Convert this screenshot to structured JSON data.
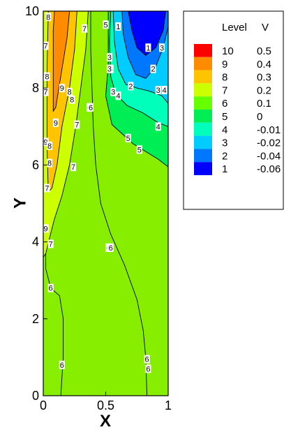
{
  "chart_data": {
    "type": "contour",
    "xlabel": "X",
    "ylabel": "Y",
    "xlim": [
      0,
      1
    ],
    "ylim": [
      0,
      10
    ],
    "x_ticks": [
      0,
      0.5,
      1
    ],
    "y_ticks": [
      0,
      2,
      4,
      6,
      8,
      10
    ],
    "x_tick_labels": [
      "0",
      "0.5",
      "1"
    ],
    "y_tick_labels": [
      "0",
      "2",
      "4",
      "6",
      "8",
      "10"
    ],
    "legend": {
      "header_level": "Level",
      "header_value": "V",
      "placement": "right",
      "levels": [
        {
          "level": "10",
          "value": "0.5",
          "color": "#ff0000"
        },
        {
          "level": "9",
          "value": "0.4",
          "color": "#ff8c00"
        },
        {
          "level": "8",
          "value": "0.3",
          "color": "#ffc400"
        },
        {
          "level": "7",
          "value": "0.2",
          "color": "#ccff00"
        },
        {
          "level": "6",
          "value": "0.1",
          "color": "#66ff00"
        },
        {
          "level": "5",
          "value": "0",
          "color": "#00ee55"
        },
        {
          "level": "4",
          "value": "-0.01",
          "color": "#00ffbb"
        },
        {
          "level": "3",
          "value": "-0.02",
          "color": "#00ccff"
        },
        {
          "level": "2",
          "value": "-0.04",
          "color": "#0077ff"
        },
        {
          "level": "1",
          "value": "-0.06",
          "color": "#0000ff"
        }
      ]
    },
    "background_color": "#88ee00",
    "regions": [
      {
        "level": "5",
        "color": "#00ee55",
        "points": [
          [
            0.52,
            10
          ],
          [
            1,
            10
          ],
          [
            1,
            5.95
          ],
          [
            0.92,
            6.15
          ],
          [
            0.72,
            6.55
          ],
          [
            0.55,
            7.05
          ],
          [
            0.5,
            7.8
          ],
          [
            0.52,
            8.6
          ]
        ]
      },
      {
        "level": "4",
        "color": "#00ffbb",
        "points": [
          [
            0.54,
            10
          ],
          [
            1,
            10
          ],
          [
            1,
            7.0
          ],
          [
            0.92,
            7.1
          ],
          [
            0.8,
            7.35
          ],
          [
            0.67,
            7.55
          ],
          [
            0.58,
            7.85
          ],
          [
            0.54,
            8.3
          ],
          [
            0.53,
            9.2
          ]
        ]
      },
      {
        "level": "3",
        "color": "#00ccff",
        "points": [
          [
            0.56,
            10
          ],
          [
            1,
            10
          ],
          [
            1,
            7.6
          ],
          [
            0.95,
            7.8
          ],
          [
            0.85,
            7.92
          ],
          [
            0.75,
            8.0
          ],
          [
            0.66,
            8.1
          ],
          [
            0.6,
            8.5
          ],
          [
            0.57,
            9.2
          ]
        ]
      },
      {
        "level": "2",
        "color": "#0077ff",
        "points": [
          [
            0.63,
            10
          ],
          [
            1,
            10
          ],
          [
            1,
            9.6
          ],
          [
            0.96,
            9.05
          ],
          [
            0.9,
            8.55
          ],
          [
            0.82,
            8.25
          ],
          [
            0.74,
            8.35
          ],
          [
            0.68,
            8.8
          ],
          [
            0.64,
            9.4
          ]
        ]
      },
      {
        "level": "1",
        "color": "#0000ff",
        "points": [
          [
            0.68,
            10
          ],
          [
            0.98,
            10
          ],
          [
            0.96,
            9.5
          ],
          [
            0.9,
            9.05
          ],
          [
            0.82,
            8.85
          ],
          [
            0.75,
            9.05
          ],
          [
            0.71,
            9.5
          ]
        ]
      },
      {
        "level": "7",
        "color": "#ccff00",
        "points": [
          [
            0,
            10
          ],
          [
            0.36,
            10
          ],
          [
            0.34,
            9.0
          ],
          [
            0.3,
            8.0
          ],
          [
            0.26,
            7.0
          ],
          [
            0.21,
            6.0
          ],
          [
            0.15,
            5.2
          ],
          [
            0.09,
            4.6
          ],
          [
            0.05,
            4.1
          ],
          [
            0.02,
            3.7
          ],
          [
            0,
            3.6
          ]
        ]
      },
      {
        "level": "8",
        "color": "#ffc400",
        "points": [
          [
            0.04,
            10
          ],
          [
            0.27,
            10
          ],
          [
            0.25,
            9.0
          ],
          [
            0.21,
            8.0
          ],
          [
            0.15,
            7.0
          ],
          [
            0.11,
            6.0
          ],
          [
            0.07,
            5.4
          ],
          [
            0.04,
            5.3
          ],
          [
            0.03,
            6.5
          ],
          [
            0.03,
            8.5
          ]
        ]
      },
      {
        "level": "9",
        "color": "#ff8c00",
        "points": [
          [
            0.09,
            10
          ],
          [
            0.21,
            10
          ],
          [
            0.19,
            9.3
          ],
          [
            0.15,
            8.5
          ],
          [
            0.1,
            7.5
          ],
          [
            0.08,
            7.4
          ],
          [
            0.08,
            8.5
          ],
          [
            0.08,
            9.5
          ]
        ]
      }
    ],
    "lines": [
      {
        "points": [
          [
            0.04,
            10
          ],
          [
            0.27,
            10
          ],
          [
            0.25,
            9.0
          ],
          [
            0.21,
            8.0
          ],
          [
            0.15,
            7.0
          ],
          [
            0.11,
            6.0
          ],
          [
            0.07,
            5.4
          ],
          [
            0.04,
            5.3
          ],
          [
            0.03,
            6.5
          ],
          [
            0.03,
            8.5
          ],
          [
            0.04,
            10
          ]
        ]
      },
      {
        "points": [
          [
            0.09,
            10
          ],
          [
            0.21,
            10
          ],
          [
            0.19,
            9.3
          ],
          [
            0.15,
            8.5
          ],
          [
            0.1,
            7.5
          ],
          [
            0.08,
            7.4
          ],
          [
            0.08,
            8.5
          ],
          [
            0.08,
            9.5
          ],
          [
            0.09,
            10
          ]
        ]
      },
      {
        "points": [
          [
            0.36,
            10
          ],
          [
            0.34,
            9.0
          ],
          [
            0.3,
            8.0
          ],
          [
            0.26,
            7.0
          ],
          [
            0.21,
            6.0
          ],
          [
            0.15,
            5.2
          ],
          [
            0.09,
            4.6
          ],
          [
            0.05,
            4.1
          ],
          [
            0.02,
            3.7
          ],
          [
            0,
            3.6
          ]
        ]
      },
      {
        "points": [
          [
            0.02,
            3.7
          ],
          [
            0.02,
            3.3
          ],
          [
            0.06,
            2.8
          ],
          [
            0.13,
            2.6
          ],
          [
            0.16,
            2.0
          ],
          [
            0.16,
            1.0
          ],
          [
            0.14,
            0
          ]
        ]
      },
      {
        "points": [
          [
            0.38,
            10
          ],
          [
            0.38,
            9.0
          ],
          [
            0.39,
            8.0
          ],
          [
            0.4,
            7.0
          ],
          [
            0.42,
            6.0
          ],
          [
            0.46,
            5.0
          ],
          [
            0.54,
            4.2
          ],
          [
            0.65,
            3.4
          ],
          [
            0.75,
            2.5
          ],
          [
            0.8,
            1.7
          ],
          [
            0.82,
            1.0
          ],
          [
            0.83,
            0
          ]
        ]
      },
      {
        "points": [
          [
            0.52,
            10
          ],
          [
            0.52,
            8.6
          ],
          [
            0.5,
            7.8
          ],
          [
            0.55,
            7.05
          ],
          [
            0.72,
            6.55
          ],
          [
            0.92,
            6.15
          ],
          [
            1,
            5.95
          ]
        ]
      },
      {
        "points": [
          [
            0.54,
            10
          ],
          [
            0.53,
            9.2
          ],
          [
            0.54,
            8.3
          ],
          [
            0.58,
            7.85
          ],
          [
            0.67,
            7.55
          ],
          [
            0.8,
            7.35
          ],
          [
            0.92,
            7.1
          ],
          [
            1,
            7.0
          ]
        ]
      },
      {
        "points": [
          [
            0.56,
            10
          ],
          [
            0.57,
            9.2
          ],
          [
            0.6,
            8.5
          ],
          [
            0.66,
            8.1
          ],
          [
            0.75,
            8.0
          ],
          [
            0.85,
            7.92
          ],
          [
            0.95,
            7.8
          ],
          [
            1,
            7.6
          ]
        ]
      },
      {
        "points": [
          [
            0.63,
            10
          ],
          [
            0.64,
            9.4
          ],
          [
            0.68,
            8.8
          ],
          [
            0.74,
            8.35
          ],
          [
            0.82,
            8.25
          ],
          [
            0.9,
            8.55
          ],
          [
            0.96,
            9.05
          ],
          [
            1,
            9.6
          ]
        ]
      },
      {
        "points": [
          [
            0.68,
            10
          ],
          [
            0.71,
            9.5
          ],
          [
            0.75,
            9.05
          ],
          [
            0.82,
            8.85
          ],
          [
            0.9,
            9.05
          ],
          [
            0.96,
            9.5
          ],
          [
            0.98,
            10
          ]
        ]
      }
    ],
    "contour_labels": [
      {
        "text": "8",
        "x": 0.04,
        "y": 9.85
      },
      {
        "text": "7",
        "x": 0.02,
        "y": 9.1
      },
      {
        "text": "7",
        "x": 0.02,
        "y": 8.3
      },
      {
        "text": "8",
        "x": 0.03,
        "y": 8.3
      },
      {
        "text": "7",
        "x": 0.02,
        "y": 7.9
      },
      {
        "text": "9",
        "x": 0.15,
        "y": 8.0
      },
      {
        "text": "8",
        "x": 0.21,
        "y": 7.9
      },
      {
        "text": "8",
        "x": 0.23,
        "y": 7.7
      },
      {
        "text": "9",
        "x": 0.1,
        "y": 7.1
      },
      {
        "text": "7",
        "x": 0.27,
        "y": 7.05
      },
      {
        "text": "9",
        "x": 0.02,
        "y": 6.6
      },
      {
        "text": "8",
        "x": 0.05,
        "y": 6.5
      },
      {
        "text": "8",
        "x": 0.05,
        "y": 6.05
      },
      {
        "text": "7",
        "x": 0.24,
        "y": 5.95
      },
      {
        "text": "7",
        "x": 0.03,
        "y": 5.4
      },
      {
        "text": "9",
        "x": 0.02,
        "y": 4.35
      },
      {
        "text": "7",
        "x": 0.06,
        "y": 3.95
      },
      {
        "text": "6",
        "x": 0.06,
        "y": 2.8
      },
      {
        "text": "6",
        "x": 0.15,
        "y": 0.8
      },
      {
        "text": "7",
        "x": 0.33,
        "y": 9.55
      },
      {
        "text": "6",
        "x": 0.37,
        "y": 7.5
      },
      {
        "text": "6",
        "x": 0.38,
        "y": 7.5
      },
      {
        "text": "6",
        "x": 0.52,
        "y": 3.85
      },
      {
        "text": "6",
        "x": 0.53,
        "y": 3.85
      },
      {
        "text": "6",
        "x": 0.54,
        "y": 3.85
      },
      {
        "text": "6",
        "x": 0.83,
        "y": 0.95
      },
      {
        "text": "6",
        "x": 0.84,
        "y": 0.7
      },
      {
        "text": "5",
        "x": 0.5,
        "y": 9.65
      },
      {
        "text": "3",
        "x": 0.53,
        "y": 8.8
      },
      {
        "text": "4",
        "x": 0.54,
        "y": 8.5
      },
      {
        "text": "3",
        "x": 0.53,
        "y": 8.5
      },
      {
        "text": "3",
        "x": 0.56,
        "y": 7.9
      },
      {
        "text": "4",
        "x": 0.6,
        "y": 7.8
      },
      {
        "text": "2",
        "x": 0.7,
        "y": 8.05
      },
      {
        "text": "1",
        "x": 0.6,
        "y": 9.6
      },
      {
        "text": "1",
        "x": 0.84,
        "y": 9.05
      },
      {
        "text": "2",
        "x": 0.88,
        "y": 8.5
      },
      {
        "text": "3",
        "x": 0.95,
        "y": 9.05
      },
      {
        "text": "3",
        "x": 0.92,
        "y": 7.95
      },
      {
        "text": "4",
        "x": 0.97,
        "y": 7.95
      },
      {
        "text": "4",
        "x": 0.92,
        "y": 7.0
      },
      {
        "text": "5",
        "x": 0.68,
        "y": 6.7
      },
      {
        "text": "5",
        "x": 0.77,
        "y": 6.4
      }
    ]
  }
}
